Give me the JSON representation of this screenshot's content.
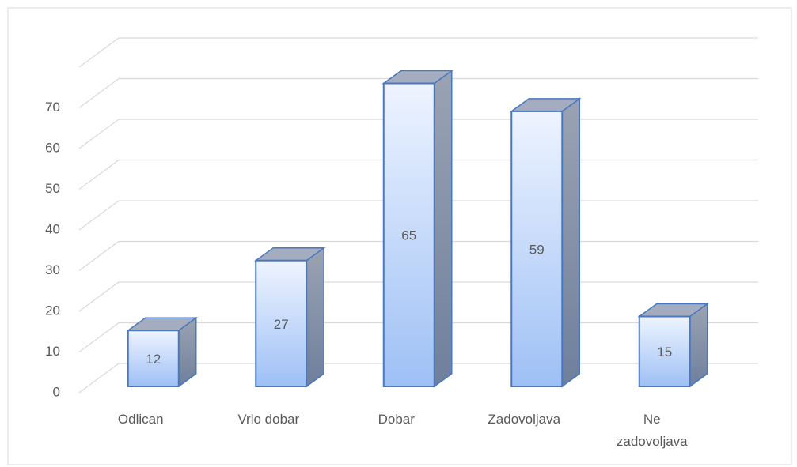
{
  "chart_data": {
    "type": "bar3d",
    "categories": [
      "Odlican",
      "Vrlo dobar",
      "Dobar",
      "Zadovoljava",
      "Ne zadovoljava"
    ],
    "values": [
      12,
      27,
      65,
      59,
      15
    ],
    "color": "#9ec0f5",
    "ylim": [
      0,
      80
    ],
    "yticks": [
      0,
      10,
      20,
      30,
      40,
      50,
      60,
      70
    ],
    "grid": true
  }
}
